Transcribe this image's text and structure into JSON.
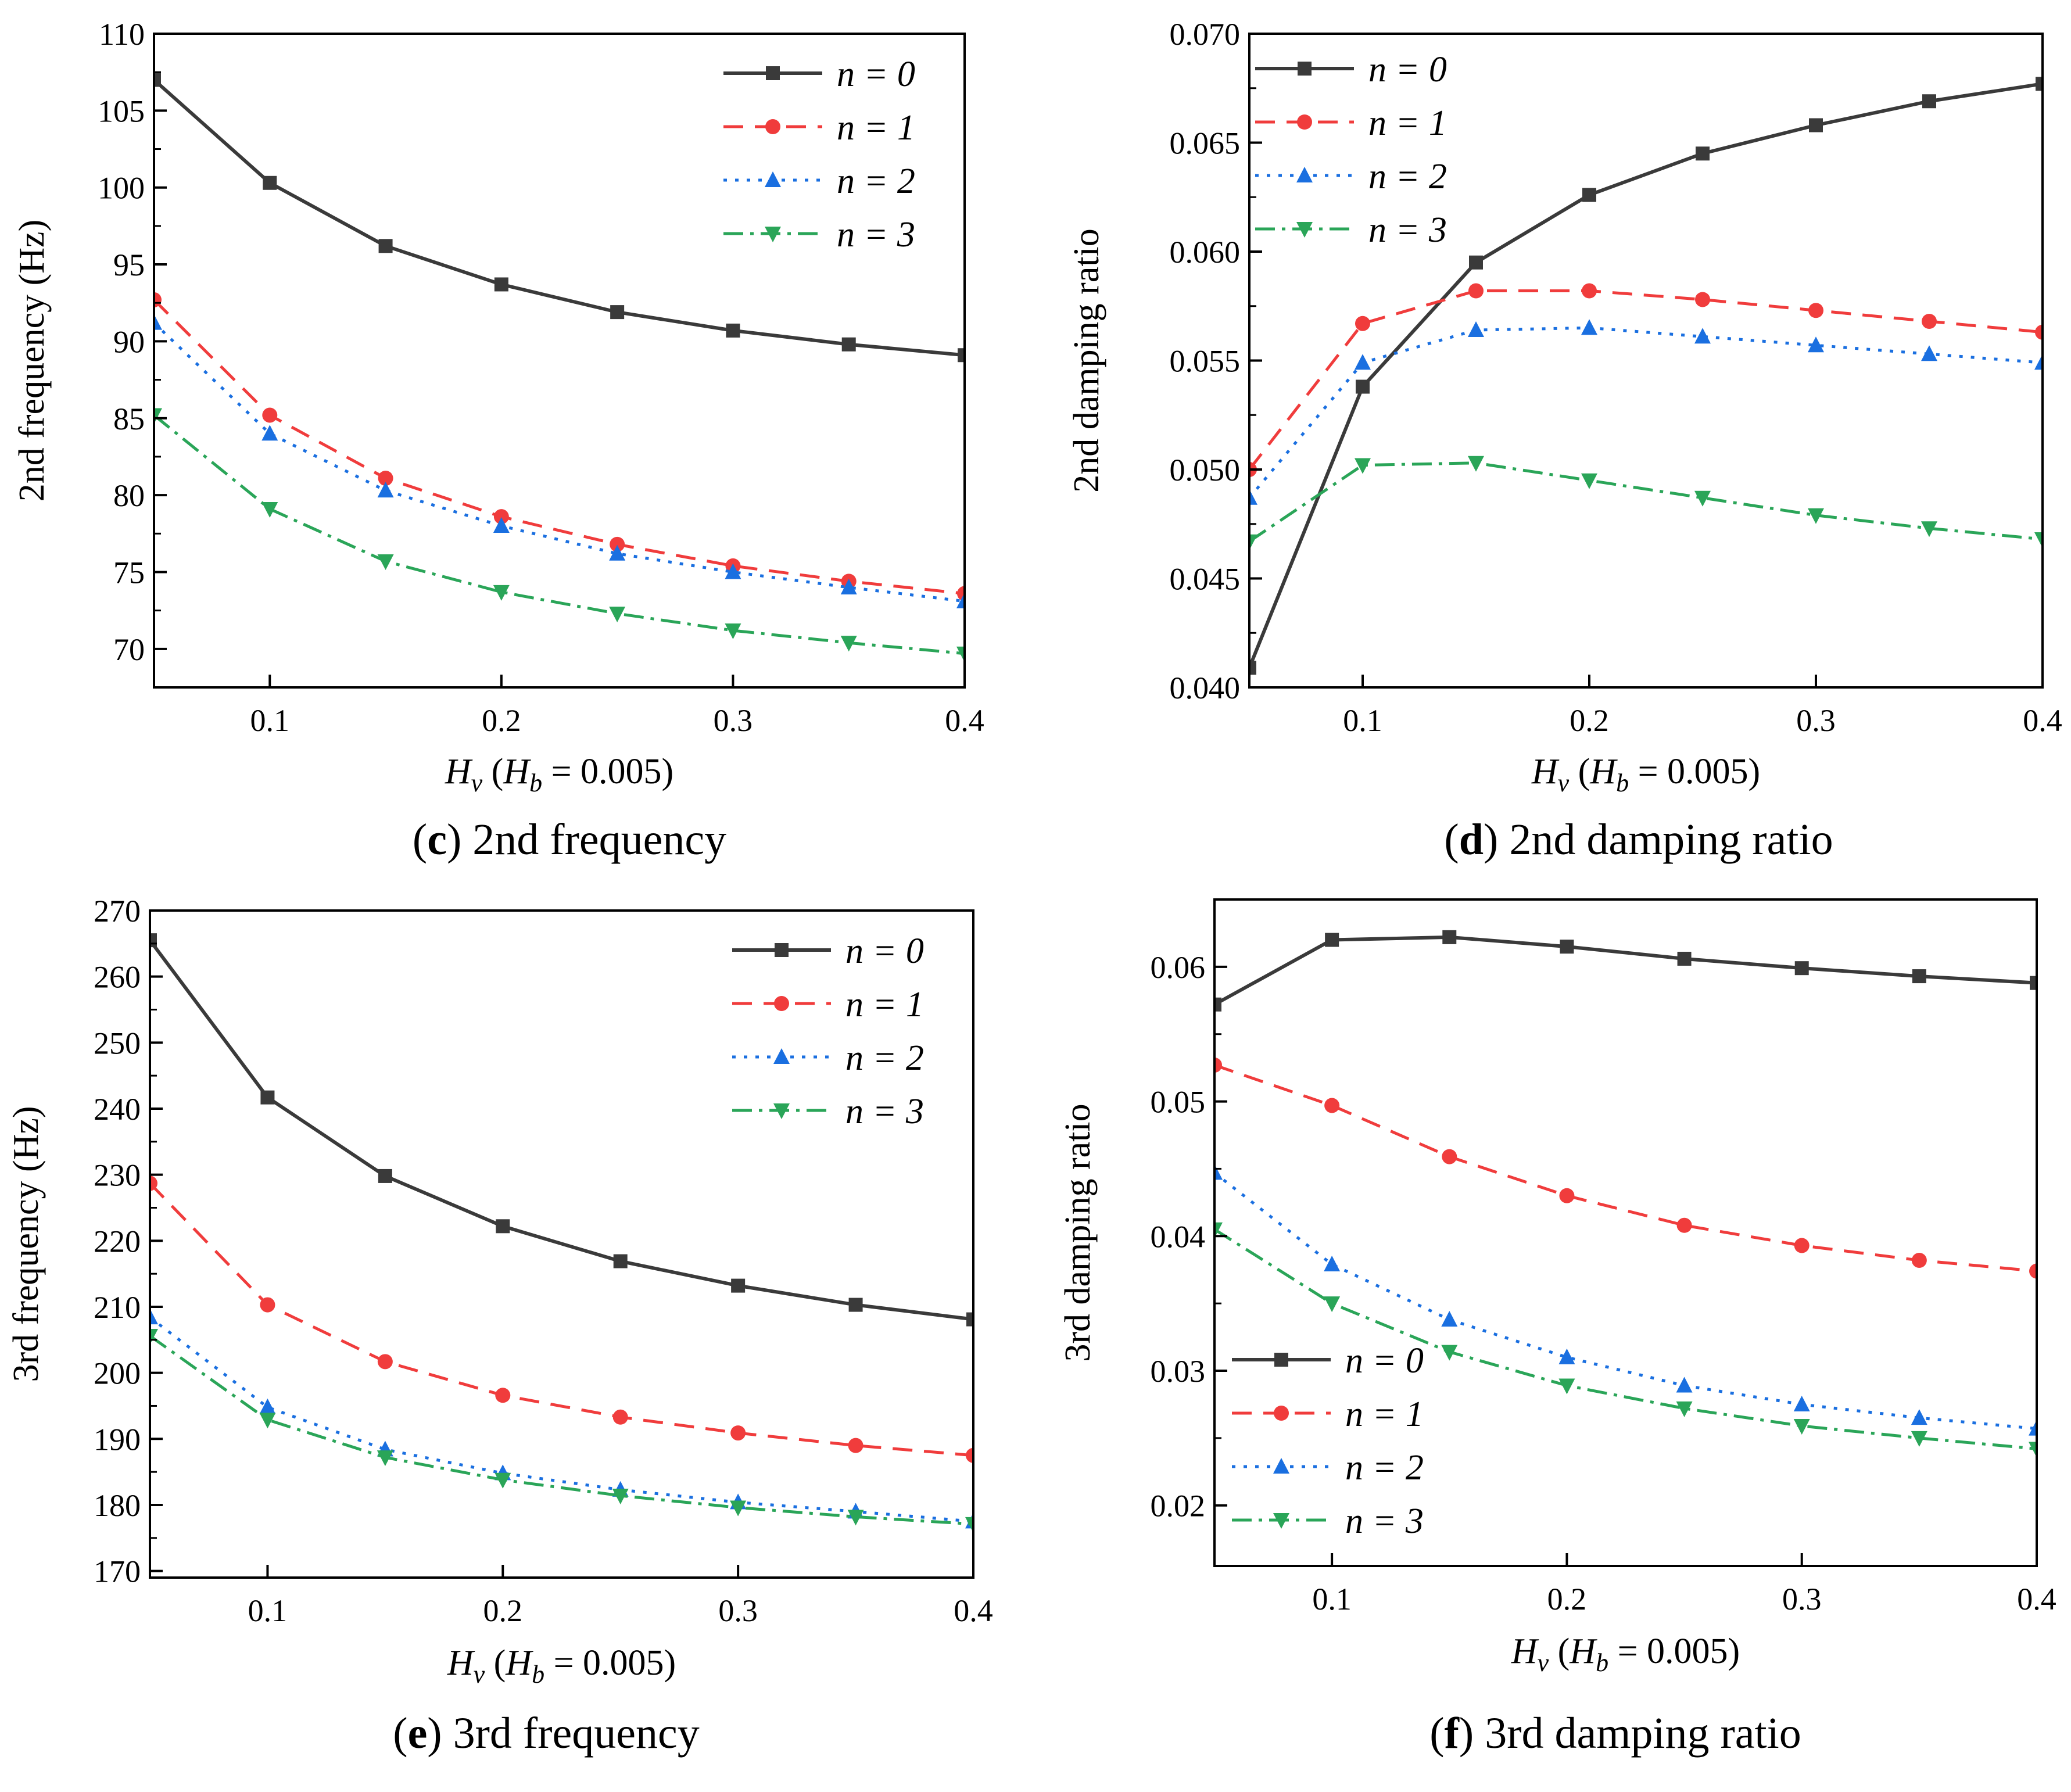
{
  "colors": {
    "n0": "#3a3a3a",
    "n1": "#f03c3c",
    "n2": "#1a6fe0",
    "n3": "#2aa558"
  },
  "legend": [
    {
      "label": "n = 0",
      "marker": "square"
    },
    {
      "label": "n = 1",
      "marker": "circle"
    },
    {
      "label": "n = 2",
      "marker": "triangle-up"
    },
    {
      "label": "n = 3",
      "marker": "triangle-down"
    }
  ],
  "chart_data": [
    {
      "id": "c",
      "type": "line",
      "caption": {
        "letter": "c",
        "text": "2nd frequency"
      },
      "ylabel": "2nd frequency (Hz)",
      "xlabel": {
        "main": "H",
        "sub": "v",
        "paren_open": " (",
        "main2": "H",
        "sub2": "b",
        "rest": " = 0.005)"
      },
      "x": [
        0.05,
        0.1,
        0.15,
        0.2,
        0.25,
        0.3,
        0.35,
        0.4
      ],
      "xlim": [
        0.05,
        0.4
      ],
      "ylim": [
        67.5,
        110
      ],
      "xticks": [
        0.1,
        0.2,
        0.3,
        0.4
      ],
      "xticklabels": [
        "0.1",
        "0.2",
        "0.3",
        "0.4"
      ],
      "yticks": [
        70,
        75,
        80,
        85,
        90,
        95,
        100,
        105,
        110
      ],
      "yticklabels": [
        "70",
        "75",
        "80",
        "85",
        "90",
        "95",
        "100",
        "105",
        "110"
      ],
      "legend_position": "top-right",
      "series": [
        {
          "name": "n = 0",
          "values": [
            107.0,
            100.3,
            96.2,
            93.7,
            91.9,
            90.7,
            89.8,
            89.1
          ]
        },
        {
          "name": "n = 1",
          "values": [
            92.7,
            85.2,
            81.1,
            78.6,
            76.8,
            75.4,
            74.4,
            73.6
          ]
        },
        {
          "name": "n = 2",
          "values": [
            91.2,
            84.0,
            80.3,
            78.0,
            76.2,
            75.0,
            74.0,
            73.1
          ]
        },
        {
          "name": "n = 3",
          "values": [
            85.2,
            79.1,
            75.7,
            73.7,
            72.3,
            71.2,
            70.4,
            69.7
          ]
        }
      ]
    },
    {
      "id": "d",
      "type": "line",
      "caption": {
        "letter": "d",
        "text": "2nd damping ratio"
      },
      "ylabel": "2nd damping ratio",
      "xlabel": {
        "main": "H",
        "sub": "v",
        "paren_open": " (",
        "main2": "H",
        "sub2": "b",
        "rest": " = 0.005)"
      },
      "x": [
        0.05,
        0.1,
        0.15,
        0.2,
        0.25,
        0.3,
        0.35,
        0.4
      ],
      "xlim": [
        0.05,
        0.4
      ],
      "ylim": [
        0.04,
        0.07
      ],
      "xticks": [
        0.1,
        0.2,
        0.3,
        0.4
      ],
      "xticklabels": [
        "0.1",
        "0.2",
        "0.3",
        "0.4"
      ],
      "yticks": [
        0.04,
        0.045,
        0.05,
        0.055,
        0.06,
        0.065,
        0.07
      ],
      "yticklabels": [
        "0.040",
        "0.045",
        "0.050",
        "0.055",
        "0.060",
        "0.065",
        "0.070"
      ],
      "legend_position": "top-left",
      "series": [
        {
          "name": "n = 0",
          "values": [
            0.0409,
            0.0538,
            0.0595,
            0.0626,
            0.0645,
            0.0658,
            0.0669,
            0.0677
          ]
        },
        {
          "name": "n = 1",
          "values": [
            0.05,
            0.0567,
            0.0582,
            0.0582,
            0.0578,
            0.0573,
            0.0568,
            0.0563
          ]
        },
        {
          "name": "n = 2",
          "values": [
            0.0487,
            0.0549,
            0.0564,
            0.0565,
            0.0561,
            0.0557,
            0.0553,
            0.0549
          ]
        },
        {
          "name": "n = 3",
          "values": [
            0.0467,
            0.0502,
            0.0503,
            0.0495,
            0.0487,
            0.0479,
            0.0473,
            0.0468
          ]
        }
      ]
    },
    {
      "id": "e",
      "type": "line",
      "caption": {
        "letter": "e",
        "text": "3rd frequency"
      },
      "ylabel": "3rd frequency (Hz)",
      "xlabel": {
        "main": "H",
        "sub": "v",
        "paren_open": " (",
        "main2": "H",
        "sub2": "b",
        "rest": " = 0.005)"
      },
      "x": [
        0.05,
        0.1,
        0.15,
        0.2,
        0.25,
        0.3,
        0.35,
        0.4
      ],
      "xlim": [
        0.05,
        0.4
      ],
      "ylim": [
        169,
        270
      ],
      "xticks": [
        0.1,
        0.2,
        0.3,
        0.4
      ],
      "xticklabels": [
        "0.1",
        "0.2",
        "0.3",
        "0.4"
      ],
      "yticks": [
        170,
        180,
        190,
        200,
        210,
        220,
        230,
        240,
        250,
        260,
        270
      ],
      "yticklabels": [
        "170",
        "180",
        "190",
        "200",
        "210",
        "220",
        "230",
        "240",
        "250",
        "260",
        "270"
      ],
      "legend_position": "top-right",
      "series": [
        {
          "name": "n = 0",
          "values": [
            265.5,
            241.7,
            229.8,
            222.2,
            216.9,
            213.2,
            210.3,
            208.1
          ]
        },
        {
          "name": "n = 1",
          "values": [
            228.7,
            210.3,
            201.7,
            196.6,
            193.3,
            190.9,
            189.0,
            187.5
          ]
        },
        {
          "name": "n = 2",
          "values": [
            208.4,
            194.8,
            188.4,
            184.8,
            182.3,
            180.4,
            179.0,
            177.5
          ]
        },
        {
          "name": "n = 3",
          "values": [
            205.6,
            192.9,
            187.2,
            183.8,
            181.4,
            179.6,
            178.2,
            177.1
          ]
        }
      ]
    },
    {
      "id": "f",
      "type": "line",
      "caption": {
        "letter": "f",
        "text": "3rd damping ratio"
      },
      "ylabel": "3rd damping ratio",
      "xlabel": {
        "main": "H",
        "sub": "v",
        "paren_open": " (",
        "main2": "H",
        "sub2": "b",
        "rest": " = 0.005)"
      },
      "x": [
        0.05,
        0.1,
        0.15,
        0.2,
        0.25,
        0.3,
        0.35,
        0.4
      ],
      "xlim": [
        0.05,
        0.4
      ],
      "ylim": [
        0.0155,
        0.065
      ],
      "xticks": [
        0.1,
        0.2,
        0.3,
        0.4
      ],
      "xticklabels": [
        "0.1",
        "0.2",
        "0.3",
        "0.4"
      ],
      "yticks": [
        0.02,
        0.03,
        0.04,
        0.05,
        0.06
      ],
      "yticklabels": [
        "0.02",
        "0.03",
        "0.04",
        "0.05",
        "0.06"
      ],
      "legend_position": "bottom-left",
      "series": [
        {
          "name": "n = 0",
          "values": [
            0.0572,
            0.062,
            0.0622,
            0.0615,
            0.0606,
            0.0599,
            0.0593,
            0.0588
          ]
        },
        {
          "name": "n = 1",
          "values": [
            0.0527,
            0.0497,
            0.0459,
            0.043,
            0.0408,
            0.0393,
            0.0382,
            0.0374
          ]
        },
        {
          "name": "n = 2",
          "values": [
            0.0447,
            0.0379,
            0.0338,
            0.031,
            0.0289,
            0.0275,
            0.0265,
            0.0257
          ]
        },
        {
          "name": "n = 3",
          "values": [
            0.0405,
            0.035,
            0.0314,
            0.0289,
            0.0272,
            0.0259,
            0.025,
            0.0242
          ]
        }
      ]
    }
  ]
}
